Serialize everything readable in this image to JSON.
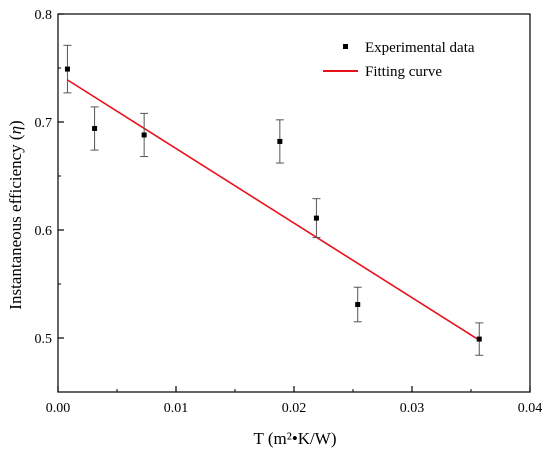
{
  "chart_data": {
    "type": "scatter",
    "title": "",
    "xlabel": "T (m²•K/W)",
    "ylabel_main": "Instantaneous efficiency (",
    "ylabel_symbol": "η",
    "ylabel_end": ")",
    "xlim": [
      0.0,
      0.04
    ],
    "ylim": [
      0.45,
      0.8
    ],
    "x_ticks": [
      0.0,
      0.01,
      0.02,
      0.03,
      0.04
    ],
    "x_tick_labels": [
      "0.00",
      "0.01",
      "0.02",
      "0.03",
      "0.04"
    ],
    "y_ticks": [
      0.5,
      0.6,
      0.7,
      0.8
    ],
    "y_tick_labels": [
      "0.5",
      "0.6",
      "0.7",
      "0.8"
    ],
    "grid": false,
    "legend_position": "top-right",
    "series": [
      {
        "name": "Experimental data",
        "kind": "scatter",
        "color": "#000000",
        "x": [
          0.0008,
          0.0031,
          0.0073,
          0.0188,
          0.0219,
          0.0254,
          0.0357
        ],
        "y": [
          0.749,
          0.694,
          0.688,
          0.682,
          0.611,
          0.531,
          0.499
        ],
        "err": [
          0.022,
          0.02,
          0.02,
          0.02,
          0.018,
          0.016,
          0.015
        ]
      },
      {
        "name": "Fitting curve",
        "kind": "line",
        "color": "#e8101a",
        "x": [
          0.0008,
          0.0357
        ],
        "y": [
          0.739,
          0.498
        ]
      }
    ]
  }
}
